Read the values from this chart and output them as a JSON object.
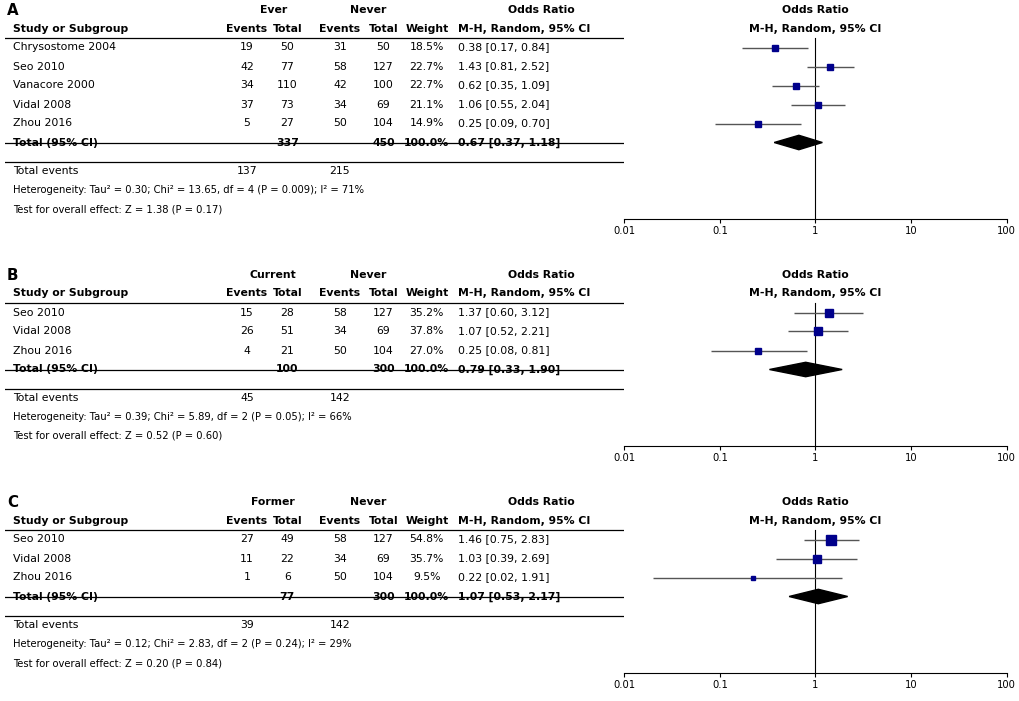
{
  "panels": [
    {
      "label": "A",
      "group1_label": "Ever",
      "group2_label": "Never",
      "studies": [
        {
          "name": "Chrysostome 2004",
          "e1": 19,
          "t1": 50,
          "e2": 31,
          "t2": 50,
          "weight": "18.5%",
          "or": 0.38,
          "ci_lo": 0.17,
          "ci_hi": 0.84,
          "or_str": "0.38 [0.17, 0.84]"
        },
        {
          "name": "Seo 2010",
          "e1": 42,
          "t1": 77,
          "e2": 58,
          "t2": 127,
          "weight": "22.7%",
          "or": 1.43,
          "ci_lo": 0.81,
          "ci_hi": 2.52,
          "or_str": "1.43 [0.81, 2.52]"
        },
        {
          "name": "Vanacore 2000",
          "e1": 34,
          "t1": 110,
          "e2": 42,
          "t2": 100,
          "weight": "22.7%",
          "or": 0.62,
          "ci_lo": 0.35,
          "ci_hi": 1.09,
          "or_str": "0.62 [0.35, 1.09]"
        },
        {
          "name": "Vidal 2008",
          "e1": 37,
          "t1": 73,
          "e2": 34,
          "t2": 69,
          "weight": "21.1%",
          "or": 1.06,
          "ci_lo": 0.55,
          "ci_hi": 2.04,
          "or_str": "1.06 [0.55, 2.04]"
        },
        {
          "name": "Zhou 2016",
          "e1": 5,
          "t1": 27,
          "e2": 50,
          "t2": 104,
          "weight": "14.9%",
          "or": 0.25,
          "ci_lo": 0.09,
          "ci_hi": 0.7,
          "or_str": "0.25 [0.09, 0.70]"
        }
      ],
      "total_t1": 337,
      "total_t2": 450,
      "total_e1": 137,
      "total_e2": 215,
      "total_or": 0.67,
      "total_ci_lo": 0.37,
      "total_ci_hi": 1.18,
      "total_or_str": "0.67 [0.37, 1.18]",
      "het_text": "Heterogeneity: Tau² = 0.30; Chi² = 13.65, df = 4 (P = 0.009); I² = 71%",
      "effect_text": "Test for overall effect: Z = 1.38 (P = 0.17)"
    },
    {
      "label": "B",
      "group1_label": "Current",
      "group2_label": "Never",
      "studies": [
        {
          "name": "Seo 2010",
          "e1": 15,
          "t1": 28,
          "e2": 58,
          "t2": 127,
          "weight": "35.2%",
          "or": 1.37,
          "ci_lo": 0.6,
          "ci_hi": 3.12,
          "or_str": "1.37 [0.60, 3.12]"
        },
        {
          "name": "Vidal 2008",
          "e1": 26,
          "t1": 51,
          "e2": 34,
          "t2": 69,
          "weight": "37.8%",
          "or": 1.07,
          "ci_lo": 0.52,
          "ci_hi": 2.21,
          "or_str": "1.07 [0.52, 2.21]"
        },
        {
          "name": "Zhou 2016",
          "e1": 4,
          "t1": 21,
          "e2": 50,
          "t2": 104,
          "weight": "27.0%",
          "or": 0.25,
          "ci_lo": 0.08,
          "ci_hi": 0.81,
          "or_str": "0.25 [0.08, 0.81]"
        }
      ],
      "total_t1": 100,
      "total_t2": 300,
      "total_e1": 45,
      "total_e2": 142,
      "total_or": 0.79,
      "total_ci_lo": 0.33,
      "total_ci_hi": 1.9,
      "total_or_str": "0.79 [0.33, 1.90]",
      "het_text": "Heterogeneity: Tau² = 0.39; Chi² = 5.89, df = 2 (P = 0.05); I² = 66%",
      "effect_text": "Test for overall effect: Z = 0.52 (P = 0.60)"
    },
    {
      "label": "C",
      "group1_label": "Former",
      "group2_label": "Never",
      "studies": [
        {
          "name": "Seo 2010",
          "e1": 27,
          "t1": 49,
          "e2": 58,
          "t2": 127,
          "weight": "54.8%",
          "or": 1.46,
          "ci_lo": 0.75,
          "ci_hi": 2.83,
          "or_str": "1.46 [0.75, 2.83]"
        },
        {
          "name": "Vidal 2008",
          "e1": 11,
          "t1": 22,
          "e2": 34,
          "t2": 69,
          "weight": "35.7%",
          "or": 1.03,
          "ci_lo": 0.39,
          "ci_hi": 2.69,
          "or_str": "1.03 [0.39, 2.69]"
        },
        {
          "name": "Zhou 2016",
          "e1": 1,
          "t1": 6,
          "e2": 50,
          "t2": 104,
          "weight": "9.5%",
          "or": 0.22,
          "ci_lo": 0.02,
          "ci_hi": 1.91,
          "or_str": "0.22 [0.02, 1.91]"
        }
      ],
      "total_t1": 77,
      "total_t2": 300,
      "total_e1": 39,
      "total_e2": 142,
      "total_or": 1.07,
      "total_ci_lo": 0.53,
      "total_ci_hi": 2.17,
      "total_or_str": "1.07 [0.53, 2.17]",
      "het_text": "Heterogeneity: Tau² = 0.12; Chi² = 2.83, df = 2 (P = 0.24); I² = 29%",
      "effect_text": "Test for overall effect: Z = 0.20 (P = 0.84)"
    }
  ],
  "forest_header": "M-H, Random, 95% CI",
  "square_color": "#00008B",
  "diamond_color": "#000000",
  "line_color": "#555555",
  "text_color": "#000000",
  "bg_color": "#ffffff",
  "font_size": 7.8,
  "small_font_size": 7.2
}
